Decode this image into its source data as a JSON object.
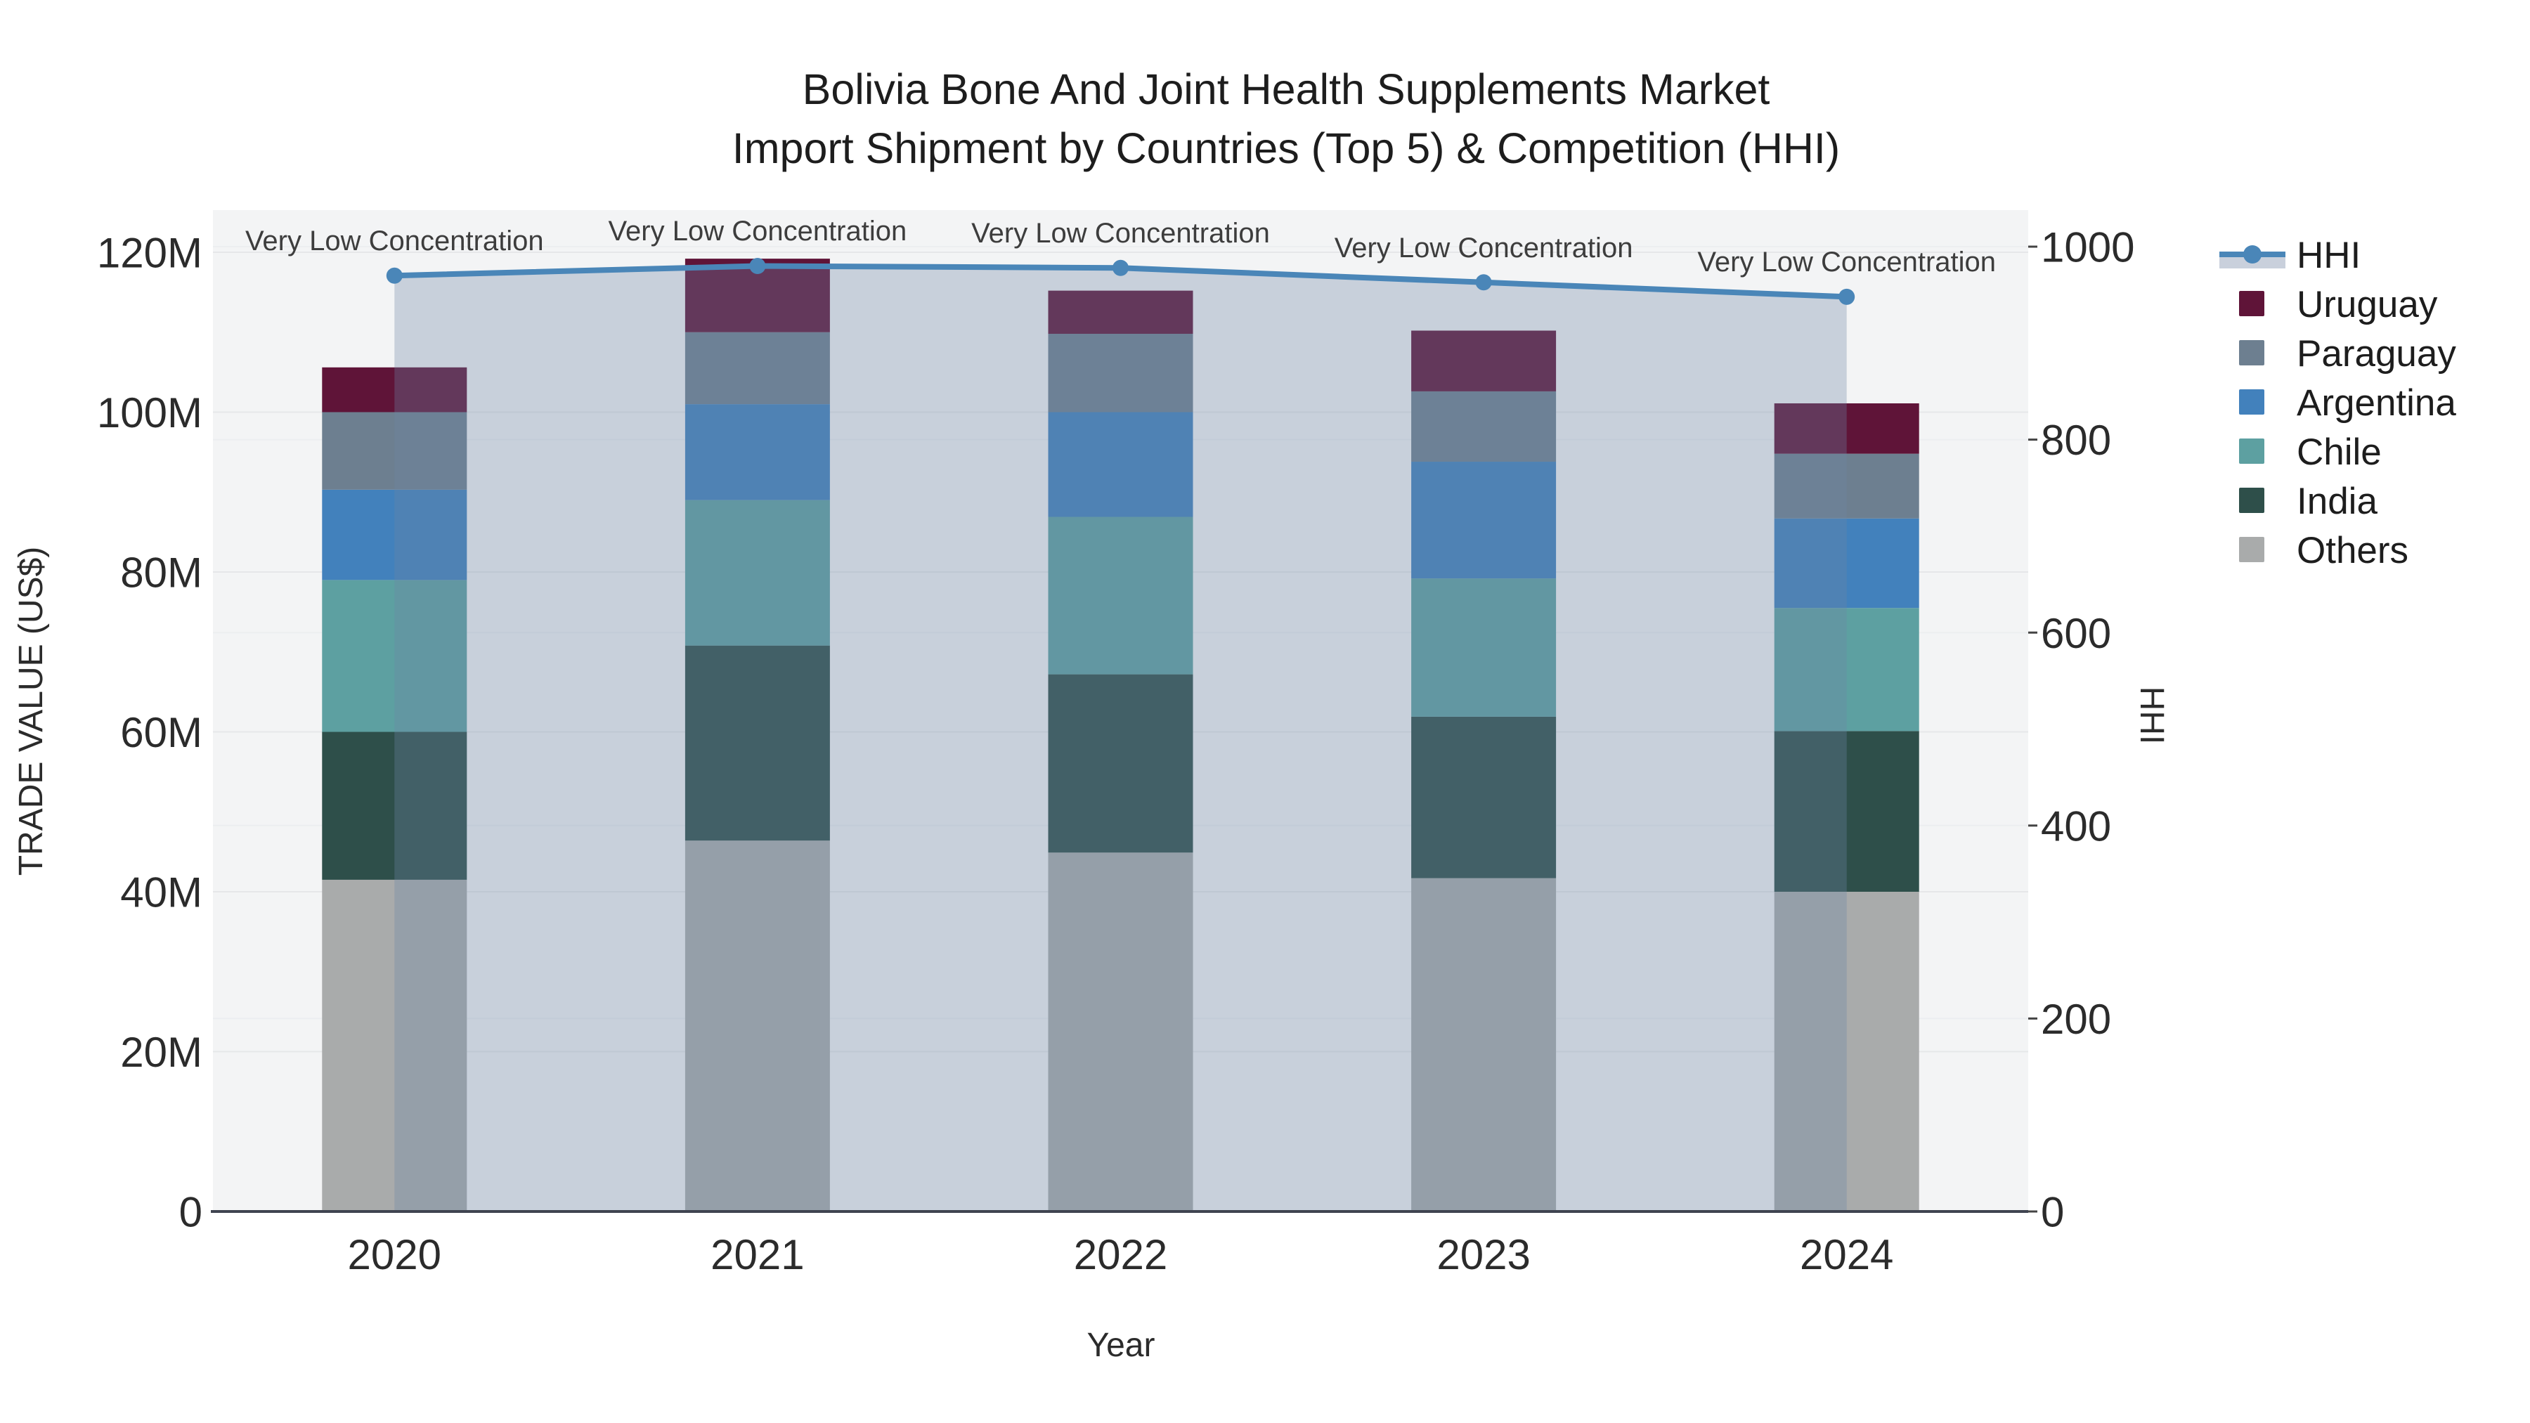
{
  "title": {
    "line1": "Bolivia Bone And Joint Health Supplements Market",
    "line2": "Import Shipment by Countries (Top 5) & Competition (HHI)"
  },
  "chart_data": {
    "type": "stacked-bar+line",
    "title": "Bolivia Bone And Joint Health Supplements Market Import Shipment by Countries (Top 5) & Competition (HHI)",
    "xlabel": "Year",
    "ylabel_left": "TRADE VALUE (US$)",
    "ylabel_right": "HHI",
    "categories": [
      "2020",
      "2021",
      "2022",
      "2023",
      "2024"
    ],
    "values_unit": "US$ millions (left axis)",
    "series": [
      {
        "name": "Others",
        "color": "#a9abab",
        "values": [
          41.5,
          46.4,
          44.9,
          41.7,
          40.0
        ]
      },
      {
        "name": "India",
        "color": "#2e4f4a",
        "values": [
          18.5,
          24.4,
          22.3,
          20.2,
          20.1
        ]
      },
      {
        "name": "Chile",
        "color": "#5da0a1",
        "values": [
          19.0,
          18.2,
          19.7,
          17.3,
          15.4
        ]
      },
      {
        "name": "Argentina",
        "color": "#4281bc",
        "values": [
          11.3,
          12.0,
          13.1,
          14.6,
          11.2
        ]
      },
      {
        "name": "Paraguay",
        "color": "#6d7f90",
        "values": [
          9.7,
          9.0,
          9.8,
          8.8,
          8.1
        ]
      },
      {
        "name": "Uruguay",
        "color": "#5f1438",
        "values": [
          5.6,
          9.2,
          5.4,
          7.6,
          6.3
        ]
      }
    ],
    "bar_totals": [
      105.6,
      119.2,
      115.2,
      110.2,
      101.1
    ],
    "hhi": {
      "name": "HHI",
      "color": "#4a86b8",
      "area_fill": "rgba(110,135,165,0.32)",
      "axis": "right",
      "values": [
        970,
        980,
        978,
        963,
        948
      ]
    },
    "annotations": [
      "Very Low Concentration",
      "Very Low Concentration",
      "Very Low Concentration",
      "Very Low Concentration",
      "Very Low Concentration"
    ],
    "y_left": {
      "range": [
        0,
        120
      ],
      "ticks": [
        {
          "v": 0,
          "label": "0"
        },
        {
          "v": 20,
          "label": "20M"
        },
        {
          "v": 40,
          "label": "40M"
        },
        {
          "v": 60,
          "label": "60M"
        },
        {
          "v": 80,
          "label": "80M"
        },
        {
          "v": 100,
          "label": "100M"
        },
        {
          "v": 120,
          "label": "120M"
        }
      ]
    },
    "y_right": {
      "range": [
        0,
        1000
      ],
      "ticks": [
        {
          "v": 0,
          "label": "0"
        },
        {
          "v": 200,
          "label": "200"
        },
        {
          "v": 400,
          "label": "400"
        },
        {
          "v": 600,
          "label": "600"
        },
        {
          "v": 800,
          "label": "800"
        },
        {
          "v": 1000,
          "label": "1000"
        }
      ]
    },
    "legend": [
      {
        "label": "HHI",
        "type": "line",
        "color": "#4a86b8"
      },
      {
        "label": "Uruguay",
        "type": "square",
        "color": "#5f1438"
      },
      {
        "label": "Paraguay",
        "type": "square",
        "color": "#6d7f90"
      },
      {
        "label": "Argentina",
        "type": "square",
        "color": "#4281bc"
      },
      {
        "label": "Chile",
        "type": "square",
        "color": "#5da0a1"
      },
      {
        "label": "India",
        "type": "square",
        "color": "#2e4f4a"
      },
      {
        "label": "Others",
        "type": "square",
        "color": "#a9abab"
      }
    ],
    "legend_position": "right",
    "grid": true,
    "plot_bg": "#f3f4f5",
    "gridline_color": "#e6e7e9"
  }
}
